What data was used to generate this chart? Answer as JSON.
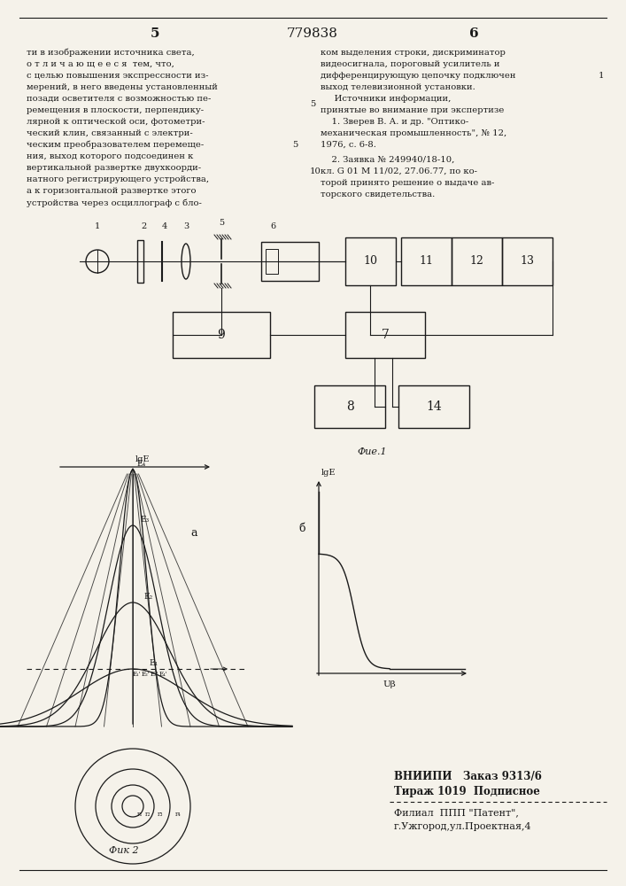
{
  "page_num_left": "5",
  "page_num_right": "6",
  "patent_num": "779838",
  "bg_color": "#f5f2ea",
  "text_color": "#1a1a1a",
  "fig1_label": "Фие.1",
  "fig2_label": "Фик 2",
  "vnipi_line1": "ВНИИПИ   Заказ 9313/6",
  "vnipi_line2": "Тираж 1019  Подписное",
  "filial_line1": "Филиал  ППП \"Патент\",",
  "filial_line2": "г.Ужгород,ул.Проектная,4",
  "left_col_lines": [
    "ти в изображении источника света,",
    "о т л и ч а ю щ е е с я  тем, что,",
    "с целью повышения экспрессности из-",
    "мерений, в него введены установленный",
    "позади осветителя с возможностью пе-",
    "ремещения в плоскости, перпендику-",
    "лярной к оптической оси, фотометри-",
    "ческий клин, связанный с электри-",
    "ческим преобразователем перемеще-",
    "ния, выход которого подсоединен к",
    "вертикальной развертке двухкоорди-",
    "натного регистрирующего устройства,",
    "а к горизонтальной развертке этого",
    "устройства через осциллограф с бло-"
  ],
  "right_col_lines_top": [
    "ком выделения строки, дискриминатор",
    "видеосигнала, пороговый усилитель и",
    "дифференцирующую цепочку подключен",
    "выход телевизионной установки.",
    "     Источники информации,",
    "принятые во внимание при экспертизе",
    "    1. Зверев В. А. и др. \"Оптико-",
    "механическая промышленность\", № 12,",
    "1976, с. 6-8."
  ],
  "right_col_ref_line0": "    2. Заявка № 249940/18-10,",
  "right_col_ref_line1": "кл. G 01 М 11/02, 27.06.77, по ко-",
  "right_col_ref_line2": "торой принято решение о выдаче ав-",
  "right_col_ref_line3": "торского свидетельства.",
  "marker5_left": "5",
  "marker5_right": "5",
  "marker10": "10"
}
